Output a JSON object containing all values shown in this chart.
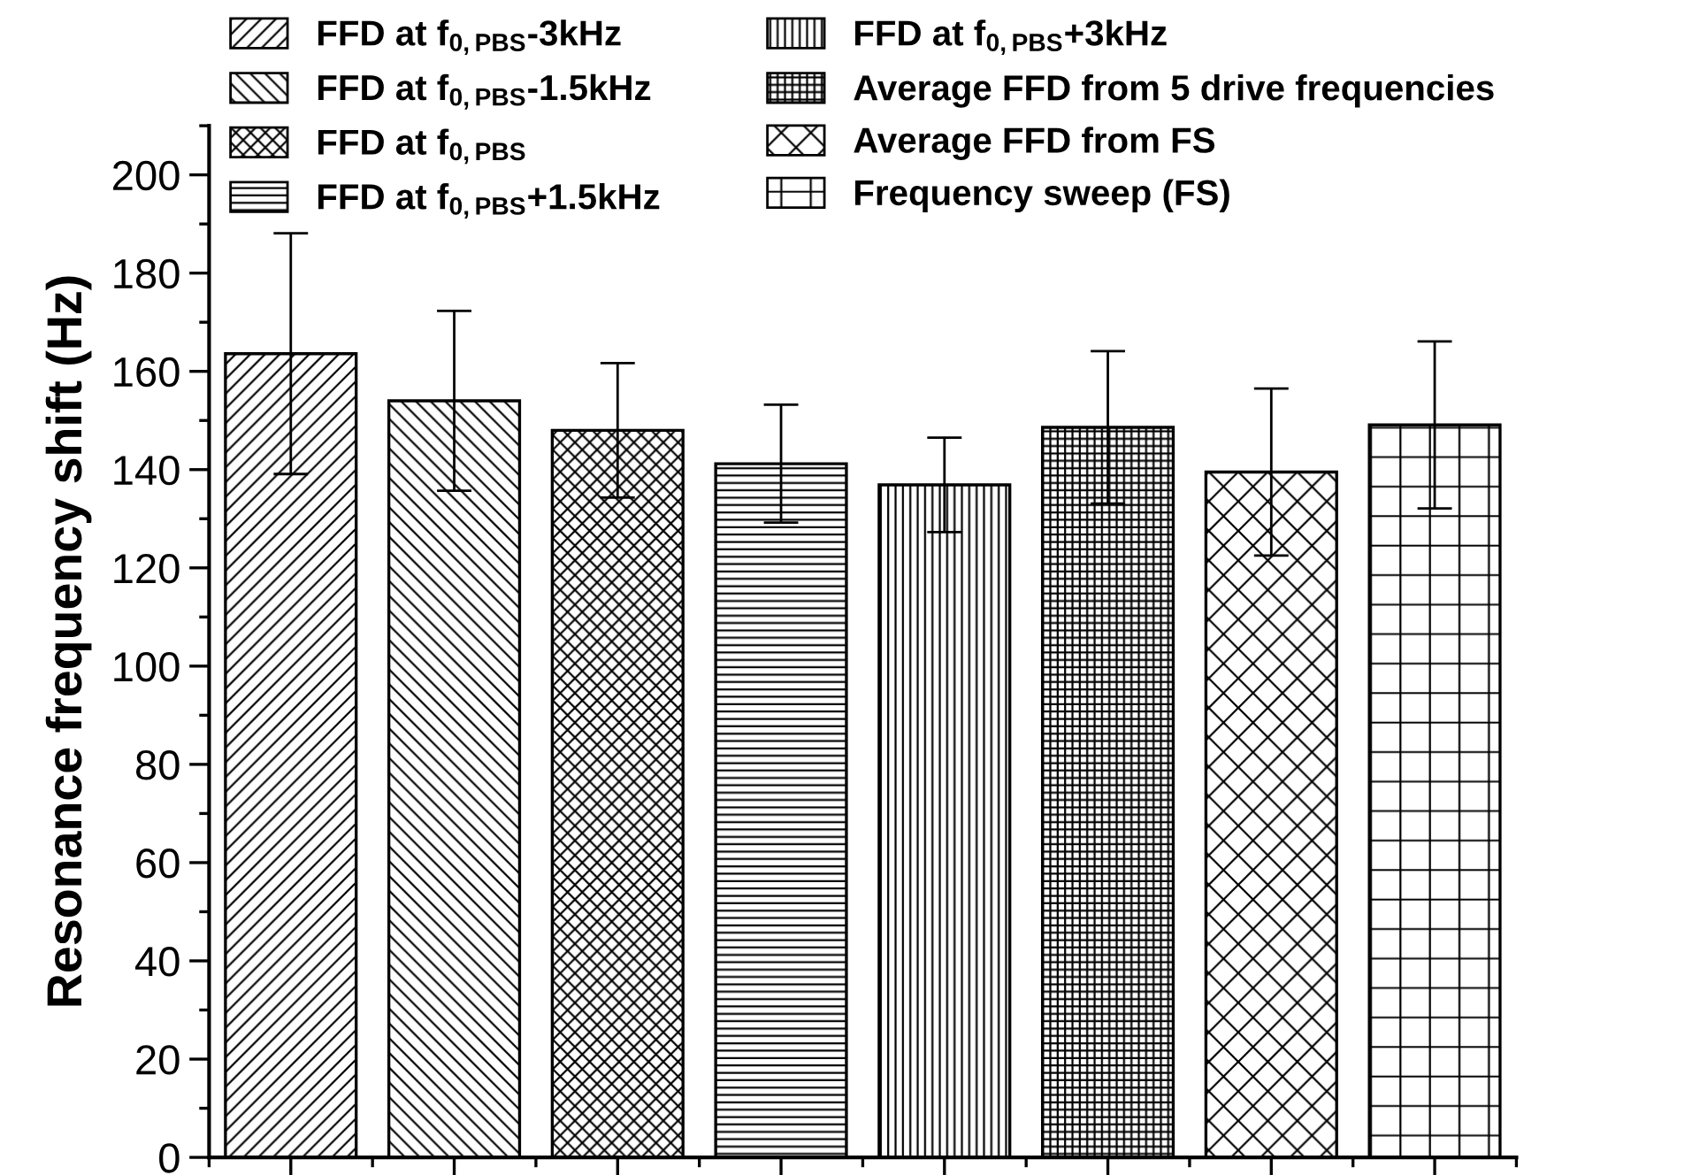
{
  "chart_data": {
    "type": "bar",
    "ylabel": "Resonance frequency shift (Hz)",
    "categories": [
      null,
      null,
      null,
      null,
      null,
      null,
      null,
      null
    ],
    "series": [
      {
        "name": "FFD at f$_{0,PBS}$-3kHz",
        "color": "#000000",
        "values": [
          163.6,
          null,
          null,
          null,
          null,
          null,
          null,
          null
        ],
        "errors": [
          24.5,
          null,
          null,
          null,
          null,
          null,
          null,
          null
        ]
      },
      {
        "name": "FFD at f$_{0,PBS}$-1.5kHz",
        "color": "#000000",
        "values": [
          null,
          154.0,
          null,
          null,
          null,
          null,
          null,
          null
        ],
        "errors": [
          null,
          18.3,
          null,
          null,
          null,
          null,
          null,
          null
        ]
      },
      {
        "name": "FFD at f$_{0,PBS}$",
        "color": "#000000",
        "values": [
          null,
          null,
          148.0,
          null,
          null,
          null,
          null,
          null
        ],
        "errors": [
          null,
          null,
          13.7,
          null,
          null,
          null,
          null,
          null
        ]
      },
      {
        "name": "FFD at f$_{0,PBS}$+1.5kHz",
        "color": "#000000",
        "values": [
          null,
          null,
          null,
          141.2,
          null,
          null,
          null,
          null
        ],
        "errors": [
          null,
          null,
          null,
          12.0,
          null,
          null,
          null,
          null
        ]
      },
      {
        "name": "FFD at f$_{0,PBS}$+3kHz",
        "color": "#000000",
        "values": [
          null,
          null,
          null,
          null,
          136.9,
          null,
          null,
          null
        ],
        "errors": [
          null,
          null,
          null,
          null,
          9.6,
          null,
          null,
          null
        ]
      },
      {
        "name": "Average FFD from 5 drive frequencies",
        "color": "#000000",
        "values": [
          null,
          null,
          null,
          null,
          null,
          148.6,
          null,
          null
        ],
        "errors": [
          null,
          null,
          null,
          null,
          null,
          15.5,
          null,
          null
        ]
      },
      {
        "name": "Average FFD from FS",
        "color": "#000000",
        "values": [
          null,
          null,
          null,
          null,
          null,
          null,
          139.5,
          null
        ],
        "errors": [
          null,
          null,
          null,
          null,
          null,
          null,
          17.0,
          null
        ]
      },
      {
        "name": "Frequency sweep (FS)",
        "color": "#000000",
        "values": [
          null,
          null,
          null,
          null,
          null,
          null,
          null,
          149.1
        ],
        "errors": [
          null,
          null,
          null,
          null,
          null,
          null,
          null,
          17.0
        ]
      }
    ],
    "ylim": [
      0,
      210
    ],
    "yticks": [
      0,
      20,
      40,
      60,
      80,
      100,
      120,
      140,
      160,
      180,
      200
    ],
    "tick_labels": "y",
    "grid": false,
    "legend": "top"
  }
}
